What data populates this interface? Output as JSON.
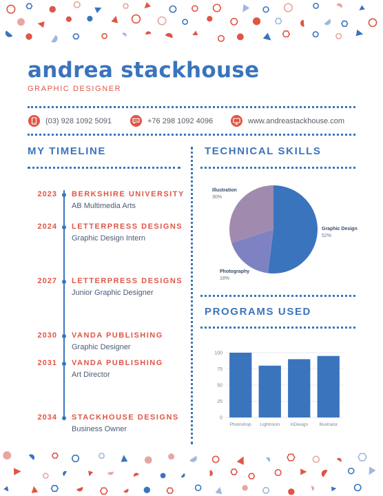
{
  "header": {
    "name": "andrea stackhouse",
    "role": "GRAPHIC DESIGNER"
  },
  "contacts": [
    {
      "icon": "phone-icon",
      "text": "(03) 928 1092 5091"
    },
    {
      "icon": "chat-icon",
      "text": "+76 298 1092 4096"
    },
    {
      "icon": "monitor-icon",
      "text": "www.andreastackhouse.com"
    }
  ],
  "timeline": {
    "title": "MY TIMELINE",
    "items": [
      {
        "year": "2023",
        "org": "BERKSHIRE UNIVERSITY",
        "role": "AB Multimedia Arts"
      },
      {
        "year": "2024",
        "org": "LETTERPRESS DESIGNS",
        "role": "Graphic Design Intern"
      },
      {
        "year": "2027",
        "org": "LETTERPRESS DESIGNS",
        "role": "Junior Graphic Designer"
      },
      {
        "year": "2030",
        "org": "VANDA PUBLISHING",
        "role": "Graphic Designer"
      },
      {
        "year": "2031",
        "org": "VANDA PUBLISHING",
        "role": "Art Director"
      },
      {
        "year": "2034",
        "org": "STACKHOUSE DESIGNS",
        "role": "Business Owner"
      }
    ]
  },
  "skills": {
    "title": "TECHNICAL SKILLS"
  },
  "programs": {
    "title": "PROGRAMS USED"
  },
  "colors": {
    "accent_blue": "#3a74bd",
    "accent_red": "#e05546",
    "pie_purple": "#a08aae",
    "pie_violet": "#7f82c2"
  },
  "chart_data": [
    {
      "type": "pie",
      "title": "",
      "slices": [
        {
          "label": "Graphic Design",
          "value": 52,
          "value_label": "52%",
          "color": "#3a74bd"
        },
        {
          "label": "Photography",
          "value": 18,
          "value_label": "18%",
          "color": "#7f82c2"
        },
        {
          "label": "Illustration",
          "value": 30,
          "value_label": "30%",
          "color": "#a08aae"
        }
      ]
    },
    {
      "type": "bar",
      "title": "",
      "categories": [
        "Photoshop",
        "Lightroom",
        "InDesign",
        "Illustrator"
      ],
      "values": [
        100,
        80,
        90,
        95
      ],
      "ylim": [
        0,
        100
      ],
      "yticks": [
        0,
        25,
        50,
        75,
        100
      ],
      "grid": true,
      "color": "#3a74bd"
    }
  ]
}
